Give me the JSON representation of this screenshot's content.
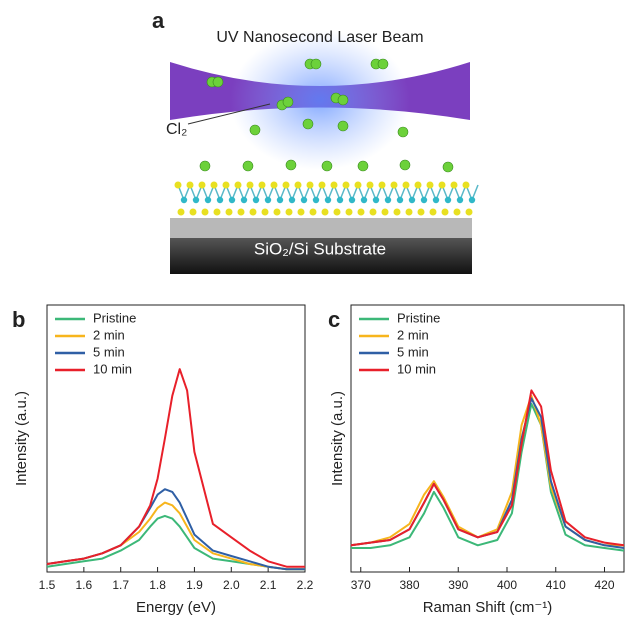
{
  "panel_a": {
    "label": "a",
    "beam_label": "UV Nanosecond Laser Beam",
    "gas_label": "Cl₂",
    "substrate_label": "SiO₂/Si Substrate"
  },
  "chart_data": [
    {
      "type": "line",
      "label": "b",
      "xlabel": "Energy (eV)",
      "ylabel": "Intensity (a.u.)",
      "legend": "upper left",
      "x": [
        1.5,
        1.55,
        1.6,
        1.65,
        1.7,
        1.75,
        1.78,
        1.8,
        1.82,
        1.84,
        1.86,
        1.88,
        1.9,
        1.95,
        2.0,
        2.05,
        2.1,
        2.15,
        2.2
      ],
      "xlim": [
        1.5,
        2.2
      ],
      "xticks": [
        1.5,
        1.6,
        1.7,
        1.8,
        1.9,
        {
          "value": 2,
          "label": "2.0"
        },
        2.1,
        2.2
      ],
      "ylim": [
        0,
        1
      ],
      "series": [
        {
          "name": "Pristine",
          "color": "#3cb878",
          "values": [
            0.02,
            0.03,
            0.04,
            0.05,
            0.08,
            0.12,
            0.17,
            0.2,
            0.21,
            0.2,
            0.17,
            0.13,
            0.09,
            0.05,
            0.04,
            0.03,
            0.02,
            0.01,
            0.01
          ]
        },
        {
          "name": "2 min",
          "color": "#f7b51c",
          "values": [
            0.03,
            0.04,
            0.05,
            0.07,
            0.1,
            0.15,
            0.2,
            0.24,
            0.26,
            0.25,
            0.22,
            0.17,
            0.12,
            0.07,
            0.05,
            0.03,
            0.02,
            0.01,
            0.01
          ]
        },
        {
          "name": "5 min",
          "color": "#2f5fa5",
          "values": [
            0.03,
            0.04,
            0.05,
            0.07,
            0.1,
            0.17,
            0.24,
            0.29,
            0.31,
            0.3,
            0.26,
            0.2,
            0.14,
            0.08,
            0.06,
            0.04,
            0.02,
            0.01,
            0.01
          ]
        },
        {
          "name": "10 min",
          "color": "#e8202a",
          "values": [
            0.03,
            0.04,
            0.05,
            0.07,
            0.1,
            0.17,
            0.25,
            0.35,
            0.5,
            0.66,
            0.76,
            0.68,
            0.45,
            0.18,
            0.13,
            0.08,
            0.04,
            0.02,
            0.02
          ]
        }
      ]
    },
    {
      "type": "line",
      "label": "c",
      "xlabel": "Raman Shift (cm⁻¹)",
      "ylabel": "Intensity (a.u.)",
      "legend": "upper left",
      "x": [
        368,
        372,
        376,
        380,
        383,
        385,
        387,
        390,
        394,
        398,
        401,
        403,
        405,
        407,
        409,
        412,
        416,
        420,
        424
      ],
      "xlim": [
        368,
        424
      ],
      "xticks": [
        370,
        380,
        390,
        400,
        410,
        420
      ],
      "ylim": [
        0,
        1
      ],
      "series": [
        {
          "name": "Pristine",
          "color": "#3cb878",
          "values": [
            0.09,
            0.09,
            0.1,
            0.13,
            0.22,
            0.3,
            0.24,
            0.13,
            0.1,
            0.12,
            0.22,
            0.45,
            0.63,
            0.55,
            0.3,
            0.14,
            0.1,
            0.09,
            0.08
          ]
        },
        {
          "name": "2 min",
          "color": "#f7b51c",
          "values": [
            0.1,
            0.11,
            0.13,
            0.18,
            0.29,
            0.34,
            0.28,
            0.17,
            0.13,
            0.16,
            0.3,
            0.55,
            0.66,
            0.55,
            0.32,
            0.17,
            0.12,
            0.1,
            0.1
          ]
        },
        {
          "name": "5 min",
          "color": "#2f5fa5",
          "values": [
            0.1,
            0.11,
            0.12,
            0.16,
            0.26,
            0.33,
            0.27,
            0.16,
            0.13,
            0.15,
            0.27,
            0.5,
            0.65,
            0.58,
            0.34,
            0.17,
            0.12,
            0.1,
            0.09
          ]
        },
        {
          "name": "10 min",
          "color": "#e8202a",
          "values": [
            0.1,
            0.11,
            0.12,
            0.16,
            0.26,
            0.33,
            0.27,
            0.16,
            0.13,
            0.15,
            0.25,
            0.48,
            0.68,
            0.62,
            0.38,
            0.19,
            0.13,
            0.11,
            0.1
          ]
        }
      ]
    }
  ]
}
